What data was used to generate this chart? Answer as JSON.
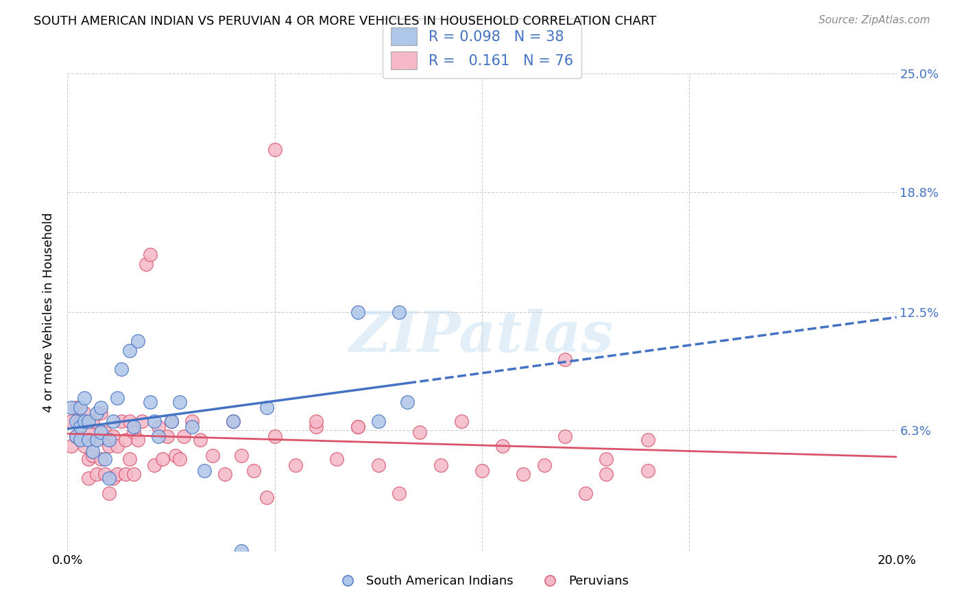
{
  "title": "SOUTH AMERICAN INDIAN VS PERUVIAN 4 OR MORE VEHICLES IN HOUSEHOLD CORRELATION CHART",
  "source": "Source: ZipAtlas.com",
  "ylabel": "4 or more Vehicles in Household",
  "xlim": [
    0.0,
    0.2
  ],
  "ylim": [
    0.0,
    0.25
  ],
  "yticks": [
    0.0,
    0.063,
    0.125,
    0.188,
    0.25
  ],
  "ytick_labels": [
    "",
    "6.3%",
    "12.5%",
    "18.8%",
    "25.0%"
  ],
  "xticks": [
    0.0,
    0.05,
    0.1,
    0.15,
    0.2
  ],
  "xtick_labels": [
    "0.0%",
    "",
    "",
    "",
    "20.0%"
  ],
  "R_blue": 0.098,
  "N_blue": 38,
  "R_pink": 0.161,
  "N_pink": 76,
  "blue_color": "#aec6e8",
  "pink_color": "#f5b8c8",
  "line_blue": "#4472c4",
  "line_pink": "#d9536a",
  "legend_label_blue": "South American Indians",
  "legend_label_pink": "Peruvians",
  "blue_scatter_x": [
    0.001,
    0.002,
    0.002,
    0.003,
    0.003,
    0.003,
    0.004,
    0.004,
    0.005,
    0.005,
    0.006,
    0.007,
    0.007,
    0.008,
    0.008,
    0.009,
    0.01,
    0.01,
    0.011,
    0.012,
    0.013,
    0.015,
    0.016,
    0.017,
    0.02,
    0.021,
    0.022,
    0.025,
    0.027,
    0.03,
    0.033,
    0.04,
    0.042,
    0.048,
    0.07,
    0.075,
    0.08,
    0.082
  ],
  "blue_scatter_y": [
    0.075,
    0.068,
    0.06,
    0.075,
    0.065,
    0.058,
    0.08,
    0.068,
    0.068,
    0.058,
    0.052,
    0.072,
    0.058,
    0.075,
    0.062,
    0.048,
    0.058,
    0.038,
    0.068,
    0.08,
    0.095,
    0.105,
    0.065,
    0.11,
    0.078,
    0.068,
    0.06,
    0.068,
    0.078,
    0.065,
    0.042,
    0.068,
    0.0,
    0.075,
    0.125,
    0.068,
    0.125,
    0.078
  ],
  "pink_scatter_x": [
    0.001,
    0.001,
    0.002,
    0.002,
    0.003,
    0.003,
    0.004,
    0.004,
    0.005,
    0.005,
    0.005,
    0.006,
    0.006,
    0.007,
    0.007,
    0.008,
    0.008,
    0.009,
    0.009,
    0.01,
    0.01,
    0.011,
    0.011,
    0.012,
    0.012,
    0.013,
    0.014,
    0.014,
    0.015,
    0.015,
    0.016,
    0.016,
    0.017,
    0.018,
    0.019,
    0.02,
    0.021,
    0.022,
    0.023,
    0.024,
    0.025,
    0.026,
    0.027,
    0.028,
    0.03,
    0.032,
    0.035,
    0.038,
    0.04,
    0.042,
    0.045,
    0.048,
    0.05,
    0.055,
    0.06,
    0.065,
    0.07,
    0.075,
    0.08,
    0.085,
    0.09,
    0.095,
    0.1,
    0.105,
    0.11,
    0.115,
    0.12,
    0.125,
    0.13,
    0.14,
    0.05,
    0.06,
    0.07,
    0.12,
    0.13,
    0.14
  ],
  "pink_scatter_y": [
    0.068,
    0.055,
    0.075,
    0.06,
    0.068,
    0.058,
    0.072,
    0.055,
    0.062,
    0.048,
    0.038,
    0.068,
    0.05,
    0.058,
    0.04,
    0.072,
    0.048,
    0.062,
    0.04,
    0.055,
    0.03,
    0.06,
    0.038,
    0.055,
    0.04,
    0.068,
    0.058,
    0.04,
    0.068,
    0.048,
    0.062,
    0.04,
    0.058,
    0.068,
    0.15,
    0.155,
    0.045,
    0.065,
    0.048,
    0.06,
    0.068,
    0.05,
    0.048,
    0.06,
    0.068,
    0.058,
    0.05,
    0.04,
    0.068,
    0.05,
    0.042,
    0.028,
    0.06,
    0.045,
    0.065,
    0.048,
    0.065,
    0.045,
    0.03,
    0.062,
    0.045,
    0.068,
    0.042,
    0.055,
    0.04,
    0.045,
    0.06,
    0.03,
    0.04,
    0.058,
    0.21,
    0.068,
    0.065,
    0.1,
    0.048,
    0.042
  ]
}
